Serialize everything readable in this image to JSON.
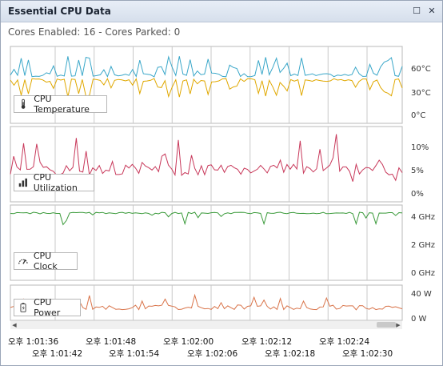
{
  "window": {
    "title": "Essential CPU Data",
    "restore_glyph": "☐",
    "close_glyph": "✕"
  },
  "status_text": "Cores Enabled: 16 - Cores Parked: 0",
  "panels": [
    {
      "label": "CPU Temperature",
      "icon": "thermometer-icon",
      "ticks": [
        "60°C",
        "30°C",
        "0°C"
      ]
    },
    {
      "label": "CPU Utilization",
      "icon": "bar-chart-icon",
      "ticks": [
        "10%",
        "5%",
        "0%"
      ]
    },
    {
      "label": "CPU Clock",
      "icon": "speedometer-icon",
      "ticks": [
        "4 GHz",
        "2 GHz",
        "0 GHz"
      ]
    },
    {
      "label": "CPU Power",
      "icon": "battery-icon",
      "ticks": [
        "40 W",
        "0 W"
      ]
    }
  ],
  "colors": {
    "temp_a": "#3aa7c9",
    "temp_b": "#e0a800",
    "util": "#c8385a",
    "clock": "#3a9a3a",
    "power": "#d9744a",
    "grid": "#c8c8c8"
  },
  "x_ticks_top": [
    "오후 1:01:36",
    "오후 1:01:48",
    "오후 1:02:00",
    "오후 1:02:12",
    "오후 1:02:24"
  ],
  "x_ticks_bottom": [
    "오후 1:01:42",
    "오후 1:01:54",
    "오후 1:02:06",
    "오후 1:02:18",
    "오후 1:02:30"
  ]
}
